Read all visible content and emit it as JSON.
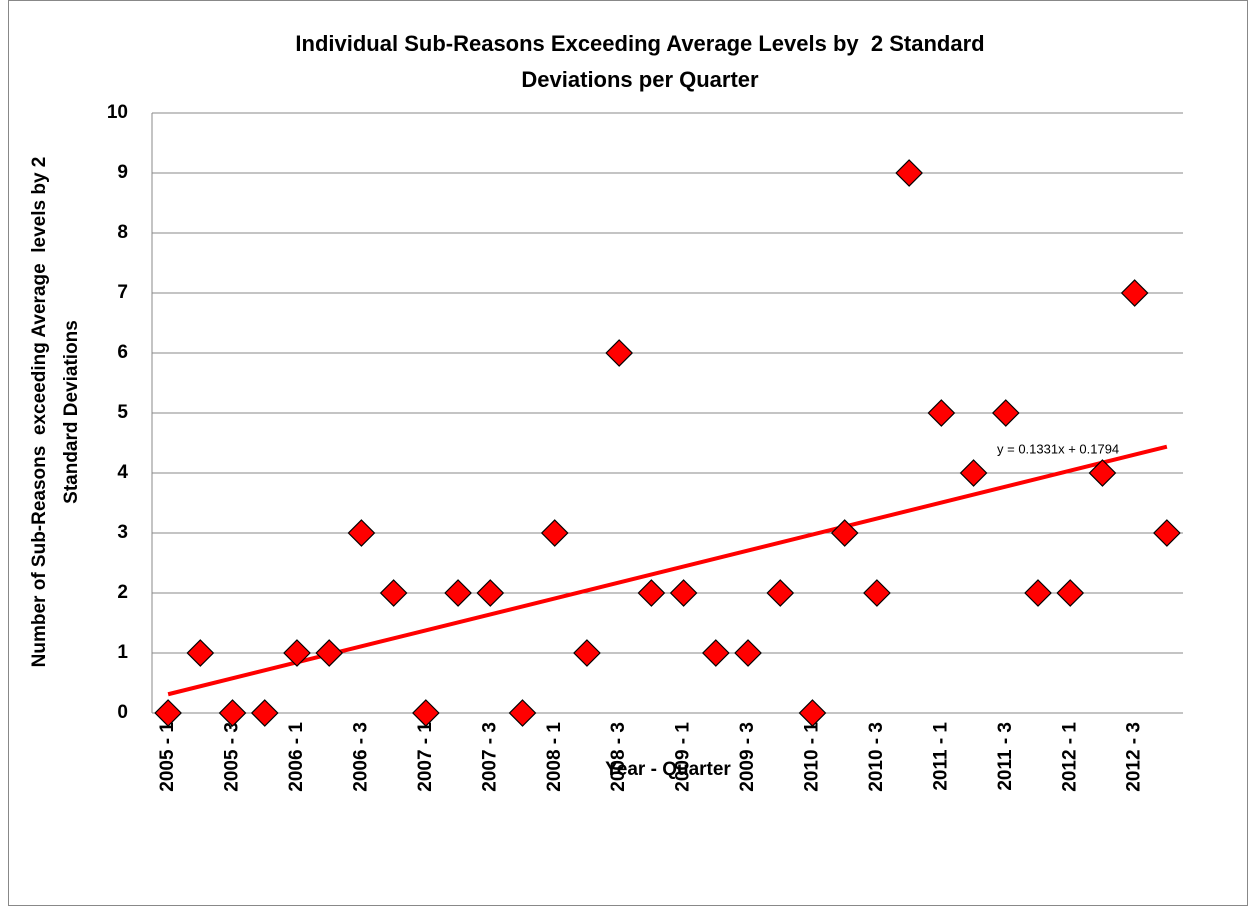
{
  "chart_data": {
    "type": "scatter",
    "title": [
      "Individual Sub-Reasons Exceeding Average Levels by  2 Standard",
      "Deviations per Quarter"
    ],
    "x_label": "Year - Quarter",
    "y_label": [
      "Number of Sub-Reasons  exceeding Average  levels by 2",
      "Standard Deviations"
    ],
    "categories": [
      "2005 - 1",
      null,
      "2005 - 3",
      null,
      "2006 - 1",
      null,
      "2006 - 3",
      null,
      "2007 - 1",
      null,
      "2007 - 3",
      null,
      "2008 - 1",
      null,
      "2008 - 3",
      null,
      "2009 - 1",
      null,
      "2009 - 3",
      null,
      "2010 - 1",
      null,
      "2010 - 3",
      null,
      "2011 - 1",
      null,
      "2011 - 3",
      null,
      "2012 - 1",
      null,
      "2012 - 3",
      null
    ],
    "values": [
      0,
      1,
      0,
      0,
      1,
      1,
      3,
      2,
      0,
      2,
      2,
      0,
      3,
      1,
      6,
      2,
      2,
      1,
      1,
      2,
      0,
      3,
      2,
      9,
      5,
      4,
      5,
      2,
      2,
      4,
      7,
      3
    ],
    "color": "#ff0000",
    "ylim": [
      0,
      10
    ],
    "yticks": [
      0,
      1,
      2,
      3,
      4,
      5,
      6,
      7,
      8,
      9,
      10
    ],
    "grid": true,
    "trendline": {
      "slope": 0.1331,
      "intercept": 0.1794,
      "label": "y = 0.1331x + 0.1794",
      "color": "#ff0000"
    }
  }
}
